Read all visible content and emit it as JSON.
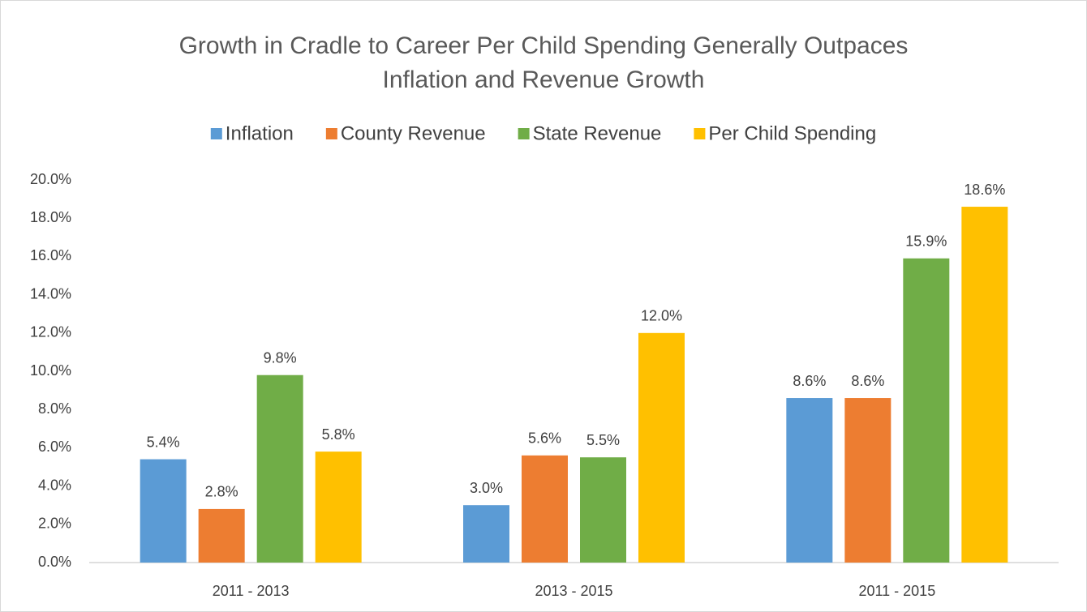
{
  "chart_data": {
    "type": "bar",
    "title": "Growth in Cradle to Career Per Child Spending Generally Outpaces Inflation and Revenue Growth",
    "categories": [
      "2011 - 2013",
      "2013 - 2015",
      "2011 - 2015"
    ],
    "series": [
      {
        "name": "Inflation",
        "color": "#5b9bd5",
        "values": [
          5.4,
          3.0,
          8.6
        ],
        "value_labels": [
          "5.4%",
          "3.0%",
          "8.6%"
        ]
      },
      {
        "name": "County Revenue",
        "color": "#ed7d31",
        "values": [
          2.8,
          5.6,
          8.6
        ],
        "value_labels": [
          "2.8%",
          "5.6%",
          "8.6%"
        ]
      },
      {
        "name": "State Revenue",
        "color": "#70ad47",
        "values": [
          9.8,
          5.5,
          15.9
        ],
        "value_labels": [
          "9.8%",
          "5.5%",
          "15.9%"
        ]
      },
      {
        "name": "Per Child Spending",
        "color": "#ffc000",
        "values": [
          5.8,
          12.0,
          18.6
        ],
        "value_labels": [
          "5.8%",
          "12.0%",
          "18.6%"
        ]
      }
    ],
    "ylim": [
      0,
      20
    ],
    "yticks": [
      {
        "value": 0,
        "label": "0.0%"
      },
      {
        "value": 2,
        "label": "2.0%"
      },
      {
        "value": 4,
        "label": "4.0%"
      },
      {
        "value": 6,
        "label": "6.0%"
      },
      {
        "value": 8,
        "label": "8.0%"
      },
      {
        "value": 10,
        "label": "10.0%"
      },
      {
        "value": 12,
        "label": "12.0%"
      },
      {
        "value": 14,
        "label": "14.0%"
      },
      {
        "value": 16,
        "label": "16.0%"
      },
      {
        "value": 18,
        "label": "18.0%"
      },
      {
        "value": 20,
        "label": "20.0%"
      }
    ],
    "grid": false,
    "legend": "top"
  }
}
